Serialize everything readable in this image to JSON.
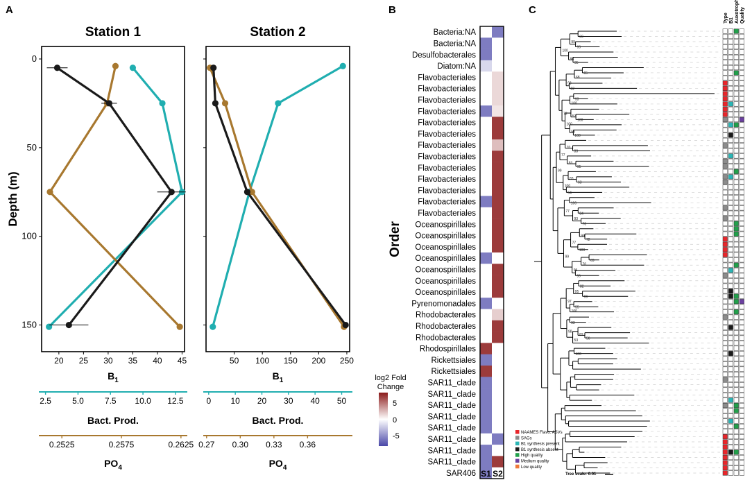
{
  "panels": {
    "a": "A",
    "b": "B",
    "c": "C"
  },
  "colors": {
    "b1": "#20aeb0",
    "bact_prod": "#1a1a1a",
    "po4": "#a8782f",
    "heat_pos": "#8b1a1a",
    "heat_neg": "#4a48a8",
    "tree": "#000000"
  },
  "chart_data": [
    {
      "type": "line",
      "title": "Station 1",
      "ylabel": "Depth (m)",
      "ylim": [
        0,
        158
      ],
      "yticks": [
        "0",
        "50",
        "100",
        "150"
      ],
      "axes": [
        {
          "key": "b1",
          "label": "B",
          "label_sub": "1",
          "range": [
            16.5,
            45.5
          ],
          "ticks": [
            "20",
            "25",
            "30",
            "35",
            "40",
            "45"
          ]
        },
        {
          "key": "bact_prod",
          "label": "Bact. Prod.",
          "label_sub": "",
          "range": [
            2.2,
            13.2
          ],
          "ticks": [
            "2.5",
            "5.0",
            "7.5",
            "10.0",
            "12.5"
          ]
        },
        {
          "key": "po4",
          "label": "PO",
          "label_sub": "4",
          "range": [
            0.2508,
            0.2628
          ],
          "ticks": [
            "0.2525",
            "0.2575",
            "0.2625"
          ]
        }
      ],
      "series": [
        {
          "name": "B1",
          "axis": "b1",
          "depth": [
            5,
            25,
            75,
            151
          ],
          "values": [
            35,
            41,
            45,
            18
          ]
        },
        {
          "name": "PO4",
          "axis": "po4",
          "depth": [
            4,
            25,
            75,
            151
          ],
          "values": [
            0.257,
            0.2563,
            0.2515,
            0.2624
          ]
        },
        {
          "name": "Bact. Prod.",
          "axis": "bact_prod",
          "depth": [
            5,
            25,
            75,
            150
          ],
          "values": [
            3.4,
            7.4,
            12.2,
            4.3
          ],
          "xerr": [
            0.8,
            0.6,
            1.1,
            1.5
          ]
        }
      ]
    },
    {
      "type": "line",
      "title": "Station 2",
      "ylim": [
        0,
        158
      ],
      "axes": [
        {
          "key": "b1",
          "label": "B",
          "label_sub": "1",
          "range": [
            0,
            255
          ],
          "ticks": [
            "50",
            "100",
            "150",
            "200",
            "250"
          ]
        },
        {
          "key": "bact_prod",
          "label": "Bact. Prod.",
          "label_sub": "",
          "range": [
            -1,
            53
          ],
          "ticks": [
            "0",
            "10",
            "20",
            "30",
            "40",
            "50"
          ]
        },
        {
          "key": "po4",
          "label": "PO",
          "label_sub": "4",
          "range": [
            0.2695,
            0.3975
          ],
          "ticks": [
            "0.27",
            "0.30",
            "0.33",
            "0.36"
          ]
        }
      ],
      "series": [
        {
          "name": "B1",
          "axis": "b1",
          "depth": [
            4,
            25,
            75,
            151
          ],
          "values": [
            243,
            128,
            77,
            12
          ]
        },
        {
          "name": "PO4",
          "axis": "po4",
          "depth": [
            5,
            25,
            75,
            151
          ],
          "values": [
            0.273,
            0.2865,
            0.3105,
            0.3925
          ]
        },
        {
          "name": "Bact. Prod.",
          "axis": "bact_prod",
          "depth": [
            5,
            25,
            75,
            150
          ],
          "values": [
            1.8,
            2.5,
            14.5,
            51.5
          ],
          "xerr": [
            0.3,
            0.3,
            0.6,
            0.6
          ]
        }
      ]
    },
    {
      "type": "heatmap",
      "ylabel": "Order",
      "columns": [
        "S1",
        "S2"
      ],
      "legend_title": [
        "log2 Fold",
        "Change"
      ],
      "legend_ticks": [
        "5",
        "0",
        "-5"
      ],
      "value_range": [
        -7,
        7
      ],
      "rows": [
        {
          "label": "Bacteria:NA",
          "values": [
            null,
            -5
          ]
        },
        {
          "label": "Bacteria:NA",
          "values": [
            -5,
            null
          ]
        },
        {
          "label": "Desulfobacterales",
          "values": [
            -5,
            null
          ]
        },
        {
          "label": "Diatom:NA",
          "values": [
            -1.5,
            null
          ]
        },
        {
          "label": "Flavobacteriales",
          "values": [
            null,
            1.2
          ]
        },
        {
          "label": "Flavobacteriales",
          "values": [
            null,
            1.2
          ]
        },
        {
          "label": "Flavobacteriales",
          "values": [
            null,
            1.2
          ]
        },
        {
          "label": "Flavobacteriales",
          "values": [
            -5,
            0.8
          ]
        },
        {
          "label": "Flavobacteriales",
          "values": [
            null,
            6
          ]
        },
        {
          "label": "Flavobacteriales",
          "values": [
            null,
            6
          ]
        },
        {
          "label": "Flavobacteriales",
          "values": [
            null,
            2
          ]
        },
        {
          "label": "Flavobacteriales",
          "values": [
            null,
            6
          ]
        },
        {
          "label": "Flavobacteriales",
          "values": [
            null,
            6
          ]
        },
        {
          "label": "Flavobacteriales",
          "values": [
            null,
            6
          ]
        },
        {
          "label": "Flavobacteriales",
          "values": [
            null,
            6
          ]
        },
        {
          "label": "Flavobacteriales",
          "values": [
            -5,
            6
          ]
        },
        {
          "label": "Flavobacteriales",
          "values": [
            null,
            6
          ]
        },
        {
          "label": "Oceanospirillales",
          "values": [
            null,
            6
          ]
        },
        {
          "label": "Oceanospirillales",
          "values": [
            null,
            6
          ]
        },
        {
          "label": "Oceanospirillales",
          "values": [
            null,
            6
          ]
        },
        {
          "label": "Oceanospirillales",
          "values": [
            -5,
            null
          ]
        },
        {
          "label": "Oceanospirillales",
          "values": [
            null,
            6
          ]
        },
        {
          "label": "Oceanospirillales",
          "values": [
            null,
            6
          ]
        },
        {
          "label": "Oceanospirillales",
          "values": [
            null,
            6
          ]
        },
        {
          "label": "Pyrenomonadales",
          "values": [
            -5,
            null
          ]
        },
        {
          "label": "Rhodobacterales",
          "values": [
            null,
            1.5
          ]
        },
        {
          "label": "Rhodobacterales",
          "values": [
            null,
            6
          ]
        },
        {
          "label": "Rhodobacterales",
          "values": [
            null,
            6
          ]
        },
        {
          "label": "Rhodospirillales",
          "values": [
            6,
            null
          ]
        },
        {
          "label": "Rickettsiales",
          "values": [
            -5,
            null
          ]
        },
        {
          "label": "Rickettsiales",
          "values": [
            6,
            null
          ]
        },
        {
          "label": "SAR11_clade",
          "values": [
            -5,
            null
          ]
        },
        {
          "label": "SAR11_clade",
          "values": [
            -5,
            null
          ]
        },
        {
          "label": "SAR11_clade",
          "values": [
            -5,
            null
          ]
        },
        {
          "label": "SAR11_clade",
          "values": [
            -5,
            null
          ]
        },
        {
          "label": "SAR11_clade",
          "values": [
            -5,
            null
          ]
        },
        {
          "label": "SAR11_clade",
          "values": [
            null,
            -5
          ]
        },
        {
          "label": "SAR11_clade",
          "values": [
            -5,
            null
          ]
        },
        {
          "label": "SAR11_clade",
          "values": [
            -5,
            6
          ]
        },
        {
          "label": "SAR406",
          "values": [
            -5,
            null
          ]
        }
      ]
    },
    {
      "type": "tree",
      "columns": [
        "Type",
        "B1",
        "Auxotroph",
        "Quality"
      ],
      "scale_label": "Tree scale: 0.01",
      "legend": [
        {
          "label": "NAAMES Flavo. ASVs",
          "color": "#e8262b"
        },
        {
          "label": "SAGs",
          "color": "#8c8c8c"
        },
        {
          "label": "B1 synthesis present",
          "color": "#2bb5b5"
        },
        {
          "label": "B1 synthesis absent",
          "color": "#1a1a1a"
        },
        {
          "label": "High quality",
          "color": "#22a04b"
        },
        {
          "label": "Medium quality",
          "color": "#6b3fa0"
        },
        {
          "label": "Low quality",
          "color": "#f07838"
        }
      ],
      "bootstrap_values": [
        "69",
        "99",
        "99",
        "95",
        "98",
        "100",
        "65",
        "68",
        "82",
        "93",
        "93",
        "100",
        "100",
        "53",
        "100",
        "53",
        "100",
        "72",
        "88",
        "70",
        "95",
        "93",
        "77",
        "63",
        "83",
        "54",
        "100",
        "99",
        "100",
        "84",
        "70",
        "93",
        "77",
        "72",
        "99",
        "100",
        "77",
        "69",
        "70",
        "99",
        "95",
        "99",
        "82",
        "99",
        "95",
        "55",
        "100",
        "97",
        "93",
        "56",
        "82",
        "53",
        "98",
        "100"
      ]
    }
  ]
}
